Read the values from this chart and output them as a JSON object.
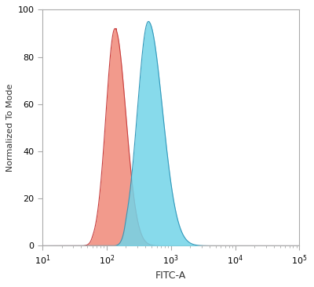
{
  "xlabel": "FITC-A",
  "ylabel": "Normalized To Mode",
  "xlim_log": [
    1,
    5
  ],
  "ylim": [
    0,
    100
  ],
  "yticks": [
    0,
    20,
    40,
    60,
    80,
    100
  ],
  "red_fill_color": "#f08878",
  "red_edge_color": "#c84040",
  "blue_fill_color": "#72d4e8",
  "blue_edge_color": "#3399bb",
  "fill_alpha": 0.85,
  "background_color": "#ffffff",
  "spine_color": "#aaaaaa",
  "figsize": [
    4.0,
    3.66
  ],
  "dpi": 100
}
